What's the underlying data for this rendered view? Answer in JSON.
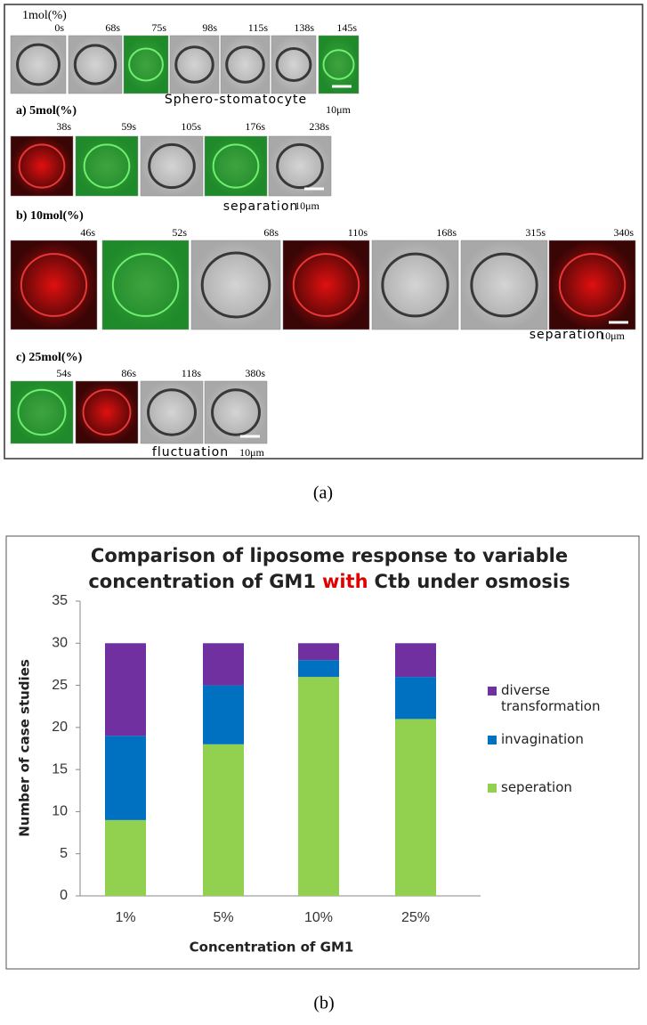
{
  "panel_a": {
    "rows": [
      {
        "label": "1mol(%)",
        "times": [
          "0s",
          "68s",
          "75s",
          "98s",
          "115s",
          "138s",
          "145s"
        ],
        "caption": "Sphero-stomatocyte",
        "scale": "10μm"
      },
      {
        "label": "a) 5mol(%)",
        "times": [
          "38s",
          "59s",
          "105s",
          "176s",
          "238s"
        ],
        "caption": "separation",
        "scale": "10μm"
      },
      {
        "label": "b) 10mol(%)",
        "times": [
          "46s",
          "52s",
          "68s",
          "110s",
          "168s",
          "315s",
          "340s"
        ],
        "caption": "separation",
        "scale": "10μm"
      },
      {
        "label": "c) 25mol(%)",
        "times": [
          "54s",
          "86s",
          "118s",
          "380s"
        ],
        "caption": "fluctuation",
        "scale": "10μm"
      }
    ],
    "panel_label": "(a)"
  },
  "chart_data": {
    "type": "bar",
    "stacked": true,
    "title": [
      "Comparison of liposome response to variable",
      "concentration of GM1",
      "with",
      "Ctb under osmosis"
    ],
    "categories": [
      "1%",
      "5%",
      "10%",
      "25%"
    ],
    "series": [
      {
        "name": "seperation",
        "color": "#92d050",
        "values": [
          9,
          18,
          26,
          21
        ]
      },
      {
        "name": "invagination",
        "color": "#0070c0",
        "values": [
          10,
          7,
          2,
          5
        ]
      },
      {
        "name": "diverse transformation",
        "color": "#7030a0",
        "values": [
          11,
          5,
          2,
          4
        ]
      }
    ],
    "ylim": [
      0,
      35
    ],
    "yticks": [
      0,
      5,
      10,
      15,
      20,
      25,
      30,
      35
    ],
    "y_label": "Number of case studies",
    "x_label": "Concentration of GM1",
    "legend": "right",
    "panel_label": "(b)"
  }
}
